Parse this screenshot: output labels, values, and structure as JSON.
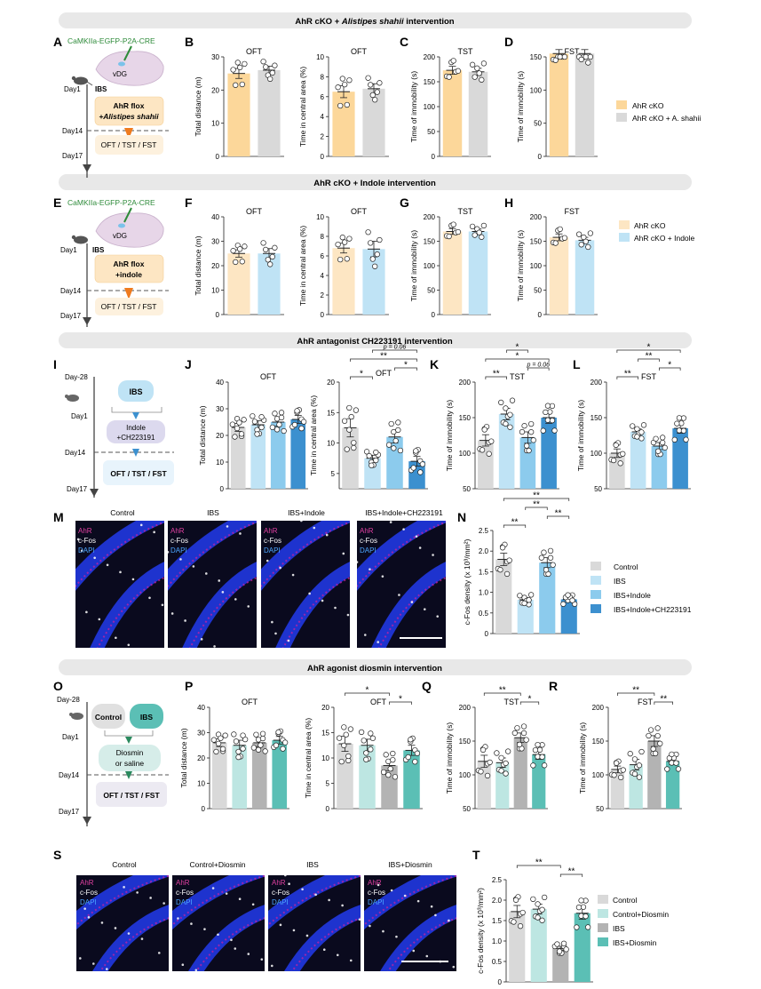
{
  "sections": [
    {
      "title_prefix": "AhR cKO + ",
      "title_italic": "Alistipes shahii",
      "title_suffix": " intervention"
    },
    {
      "title_prefix": "AhR cKO + Indole intervention",
      "title_italic": "",
      "title_suffix": ""
    },
    {
      "title_prefix": "AhR antagonist CH223191 intervention",
      "title_italic": "",
      "title_suffix": ""
    },
    {
      "title_prefix": "AhR agonist diosmin intervention",
      "title_italic": "",
      "title_suffix": ""
    }
  ],
  "letters": [
    "A",
    "B",
    "C",
    "D",
    "E",
    "F",
    "G",
    "H",
    "I",
    "J",
    "K",
    "L",
    "M",
    "N",
    "O",
    "P",
    "Q",
    "R",
    "S",
    "T"
  ],
  "schematics": {
    "A": {
      "virus": "CaMKIIa-EGFP-P2A-CRE",
      "region": "vDG",
      "day_a": "Day1",
      "day_b": "Day14",
      "day_c": "Day17",
      "ibs": "IBS",
      "box1_line1": "AhR flox",
      "box1_line2": "+Alistipes shahii",
      "box2": "OFT / TST / FST"
    },
    "E": {
      "virus": "CaMKIIa-EGFP-P2A-CRE",
      "region": "vDG",
      "day_a": "Day1",
      "day_b": "Day14",
      "day_c": "Day17",
      "ibs": "IBS",
      "box1_line1": "AhR flox",
      "box1_line2": "+indole",
      "box2": "OFT / TST / FST"
    },
    "I": {
      "day0": "Day-28",
      "box0": "IBS",
      "day_a": "Day1",
      "box1_line1": "Indole",
      "box1_line2": "+CH223191",
      "day_b": "Day14",
      "box2": "OFT / TST / FST",
      "day_c": "Day17"
    },
    "O": {
      "day0": "Day-28",
      "box0a": "Control",
      "box0b": "IBS",
      "day_a": "Day1",
      "box1_line1": "Diosmin",
      "box1_line2": "or saline",
      "day_b": "Day14",
      "box2": "OFT / TST / FST",
      "day_c": "Day17"
    }
  },
  "colors": {
    "gray": "#d9d9d9",
    "orange": "#fcd79a",
    "peach": "#fde6c3",
    "lightblue": "#bfe3f5",
    "midblue": "#8ccbed",
    "darkblue": "#3c90cf",
    "darkgray": "#b3b3b3",
    "pale_teal": "#bde6e2",
    "teal": "#5bbfb5"
  },
  "legends": {
    "D": [
      "AhR cKO",
      "AhR cKO + A. shahii"
    ],
    "H": [
      "AhR cKO",
      "AhR cKO + Indole"
    ],
    "N": [
      "Control",
      "IBS",
      "IBS+Indole",
      "IBS+Indole+CH223191"
    ],
    "T": [
      "Control",
      "Control+Diosmin",
      "IBS",
      "IBS+Diosmin"
    ]
  },
  "micrographs": {
    "M": {
      "labels": [
        "Control",
        "IBS",
        "IBS+Indole",
        "IBS+Indole+CH223191"
      ],
      "stains": [
        "AhR",
        "c-Fos",
        "DAPI"
      ]
    },
    "S": {
      "labels": [
        "Control",
        "Control+Diosmin",
        "IBS",
        "IBS+Diosmin"
      ],
      "stains": [
        "AhR",
        "c-Fos",
        "DAPI"
      ]
    }
  },
  "chart_data": [
    {
      "id": "B1",
      "type": "bar",
      "title": "OFT",
      "ylabel": "Total distance (m)",
      "ylim": [
        0,
        30
      ],
      "ticks": [
        0,
        10,
        20,
        30
      ],
      "colors": [
        "orange",
        "gray"
      ],
      "values": [
        25,
        26
      ],
      "errors": [
        1.5,
        1.2
      ]
    },
    {
      "id": "B2",
      "type": "bar",
      "title": "OFT",
      "ylabel": "Time in central area (%)",
      "ylim": [
        0,
        10
      ],
      "ticks": [
        0,
        2,
        4,
        6,
        8,
        10
      ],
      "colors": [
        "orange",
        "gray"
      ],
      "values": [
        6.5,
        6.8
      ],
      "errors": [
        0.6,
        0.5
      ]
    },
    {
      "id": "C",
      "type": "bar",
      "title": "TST",
      "ylabel": "Time of immobility (s)",
      "ylim": [
        0,
        200
      ],
      "ticks": [
        0,
        50,
        100,
        150,
        200
      ],
      "colors": [
        "orange",
        "gray"
      ],
      "values": [
        173,
        170
      ],
      "errors": [
        8,
        7
      ]
    },
    {
      "id": "D",
      "type": "bar",
      "title": "FST",
      "ylabel": "Time of immobility (s)",
      "ylim": [
        0,
        150
      ],
      "ticks": [
        0,
        50,
        100,
        150
      ],
      "colors": [
        "orange",
        "gray"
      ],
      "values": [
        155,
        155
      ],
      "errors": [
        6,
        6
      ]
    },
    {
      "id": "F1",
      "type": "bar",
      "title": "OFT",
      "ylabel": "Total distance (m)",
      "ylim": [
        0,
        40
      ],
      "ticks": [
        0,
        10,
        20,
        30,
        40
      ],
      "colors": [
        "peach",
        "lightblue"
      ],
      "values": [
        25,
        25
      ],
      "errors": [
        1.5,
        2
      ]
    },
    {
      "id": "F2",
      "type": "bar",
      "title": "OFT",
      "ylabel": "Time in central area (%)",
      "ylim": [
        0,
        10
      ],
      "ticks": [
        0,
        2,
        4,
        6,
        8,
        10
      ],
      "colors": [
        "peach",
        "lightblue"
      ],
      "values": [
        6.8,
        6.7
      ],
      "errors": [
        0.5,
        0.8
      ]
    },
    {
      "id": "G",
      "type": "bar",
      "title": "TST",
      "ylabel": "Time of immobility (s)",
      "ylim": [
        0,
        200
      ],
      "ticks": [
        0,
        50,
        100,
        150,
        200
      ],
      "colors": [
        "peach",
        "lightblue"
      ],
      "values": [
        170,
        170
      ],
      "errors": [
        6,
        5
      ]
    },
    {
      "id": "H",
      "type": "bar",
      "title": "FST",
      "ylabel": "Time of immobility (s)",
      "ylim": [
        0,
        200
      ],
      "ticks": [
        0,
        50,
        100,
        150,
        200
      ],
      "colors": [
        "peach",
        "lightblue"
      ],
      "values": [
        158,
        152
      ],
      "errors": [
        7,
        6
      ]
    },
    {
      "id": "J1",
      "type": "bar",
      "title": "OFT",
      "ylabel": "Total distance (m)",
      "ylim": [
        0,
        40
      ],
      "ticks": [
        0,
        10,
        20,
        30,
        40
      ],
      "colors": [
        "gray",
        "lightblue",
        "midblue",
        "darkblue"
      ],
      "values": [
        23,
        24,
        25,
        26
      ],
      "errors": [
        1.5,
        1.5,
        1.5,
        1.5
      ]
    },
    {
      "id": "J2",
      "type": "bar",
      "title": "OFT",
      "ylabel": "Time in central area (%)",
      "ylim": [
        2.5,
        20
      ],
      "ticks": [
        5,
        10,
        15,
        20
      ],
      "colors": [
        "gray",
        "lightblue",
        "midblue",
        "darkblue"
      ],
      "values": [
        12.5,
        7.5,
        11,
        7
      ],
      "errors": [
        1.5,
        0.5,
        1,
        0.8
      ]
    },
    {
      "id": "K",
      "type": "bar",
      "title": "TST",
      "ylabel": "Time of immobility (s)",
      "ylim": [
        50,
        200
      ],
      "ticks": [
        50,
        100,
        150,
        200
      ],
      "colors": [
        "gray",
        "lightblue",
        "midblue",
        "darkblue"
      ],
      "values": [
        118,
        155,
        122,
        150
      ],
      "errors": [
        8,
        8,
        8,
        8
      ]
    },
    {
      "id": "L",
      "type": "bar",
      "title": "FST",
      "ylabel": "Time of immobility (s)",
      "ylim": [
        50,
        200
      ],
      "ticks": [
        50,
        100,
        150,
        200
      ],
      "colors": [
        "gray",
        "lightblue",
        "midblue",
        "darkblue"
      ],
      "values": [
        100,
        130,
        110,
        135
      ],
      "errors": [
        6,
        4,
        5,
        7
      ]
    },
    {
      "id": "N",
      "type": "bar",
      "title": "",
      "ylabel": "c-Fos density (x 10³/mm²)",
      "ylim": [
        0,
        2.5
      ],
      "ticks": [
        0,
        0.5,
        1.0,
        1.5,
        2.0,
        2.5
      ],
      "tick_labels": [
        "0",
        "0.5",
        "1.0",
        "1.5",
        "2.0",
        "2.5"
      ],
      "colors": [
        "gray",
        "lightblue",
        "midblue",
        "darkblue"
      ],
      "values": [
        1.8,
        0.82,
        1.72,
        0.83
      ],
      "errors": [
        0.15,
        0.05,
        0.12,
        0.05
      ]
    },
    {
      "id": "P1",
      "type": "bar",
      "title": "OFT",
      "ylabel": "Total distance (m)",
      "ylim": [
        0,
        40
      ],
      "ticks": [
        0,
        10,
        20,
        30,
        40
      ],
      "colors": [
        "gray",
        "pale_teal",
        "darkgray",
        "teal"
      ],
      "values": [
        26,
        25,
        26,
        27
      ],
      "errors": [
        1.5,
        2,
        1.5,
        1.5
      ]
    },
    {
      "id": "P2",
      "type": "bar",
      "title": "OFT",
      "ylabel": "Time in central area (%)",
      "ylim": [
        0,
        20
      ],
      "ticks": [
        0,
        5,
        10,
        15,
        20
      ],
      "colors": [
        "gray",
        "pale_teal",
        "darkgray",
        "teal"
      ],
      "values": [
        12.8,
        12.5,
        8.5,
        11.5
      ],
      "errors": [
        1.5,
        1.2,
        1,
        1
      ]
    },
    {
      "id": "Q",
      "type": "bar",
      "title": "TST",
      "ylabel": "Time of immobility (s)",
      "ylim": [
        50,
        200
      ],
      "ticks": [
        50,
        100,
        150,
        200
      ],
      "colors": [
        "gray",
        "pale_teal",
        "darkgray",
        "teal"
      ],
      "values": [
        120,
        118,
        155,
        130
      ],
      "errors": [
        9,
        7,
        7,
        7
      ]
    },
    {
      "id": "R",
      "type": "bar",
      "title": "FST",
      "ylabel": "Time of immobility (s)",
      "ylim": [
        50,
        200
      ],
      "ticks": [
        50,
        100,
        150,
        200
      ],
      "colors": [
        "gray",
        "pale_teal",
        "darkgray",
        "teal"
      ],
      "values": [
        108,
        115,
        150,
        120
      ],
      "errors": [
        5,
        8,
        8,
        5
      ]
    },
    {
      "id": "T",
      "type": "bar",
      "title": "",
      "ylabel": "c-Fos density (x 10³/mm²)",
      "ylim": [
        0,
        2.5
      ],
      "ticks": [
        0,
        0.5,
        1.0,
        1.5,
        2.0,
        2.5
      ],
      "tick_labels": [
        "0",
        "0.5",
        "1.0",
        "1.5",
        "2.0",
        "2.5"
      ],
      "colors": [
        "gray",
        "pale_teal",
        "darkgray",
        "teal"
      ],
      "values": [
        1.72,
        1.78,
        0.82,
        1.68
      ],
      "errors": [
        0.15,
        0.12,
        0.05,
        0.15
      ]
    }
  ],
  "significance": [
    {
      "id": "J2",
      "label": "*",
      "i": 0,
      "j": 1
    },
    {
      "id": "J2",
      "label": "*",
      "i": 2,
      "j": 3
    },
    {
      "id": "J2",
      "label": "**",
      "i": 0,
      "j": 3
    },
    {
      "id": "J2",
      "label": "p = 0.06",
      "i": 1,
      "j": 3
    },
    {
      "id": "K",
      "label": "**",
      "i": 0,
      "j": 1
    },
    {
      "id": "K",
      "label": "p = 0.06",
      "i": 2,
      "j": 3
    },
    {
      "id": "K",
      "label": "*",
      "i": 0,
      "j": 3
    },
    {
      "id": "K",
      "label": "*",
      "i": 1,
      "j": 2
    },
    {
      "id": "L",
      "label": "**",
      "i": 0,
      "j": 1
    },
    {
      "id": "L",
      "label": "*",
      "i": 2,
      "j": 3
    },
    {
      "id": "L",
      "label": "**",
      "i": 1,
      "j": 2
    },
    {
      "id": "L",
      "label": "*",
      "i": 0,
      "j": 3
    },
    {
      "id": "N",
      "label": "**",
      "i": 0,
      "j": 1
    },
    {
      "id": "N",
      "label": "**",
      "i": 2,
      "j": 3
    },
    {
      "id": "N",
      "label": "**",
      "i": 1,
      "j": 2
    },
    {
      "id": "N",
      "label": "**",
      "i": 0,
      "j": 3
    },
    {
      "id": "P2",
      "label": "*",
      "i": 2,
      "j": 3
    },
    {
      "id": "P2",
      "label": "*",
      "i": 0,
      "j": 2
    },
    {
      "id": "Q",
      "label": "*",
      "i": 2,
      "j": 3
    },
    {
      "id": "Q",
      "label": "**",
      "i": 0,
      "j": 2
    },
    {
      "id": "R",
      "label": "**",
      "i": 2,
      "j": 3
    },
    {
      "id": "R",
      "label": "**",
      "i": 0,
      "j": 2
    },
    {
      "id": "T",
      "label": "**",
      "i": 2,
      "j": 3
    },
    {
      "id": "T",
      "label": "**",
      "i": 0,
      "j": 2
    }
  ]
}
